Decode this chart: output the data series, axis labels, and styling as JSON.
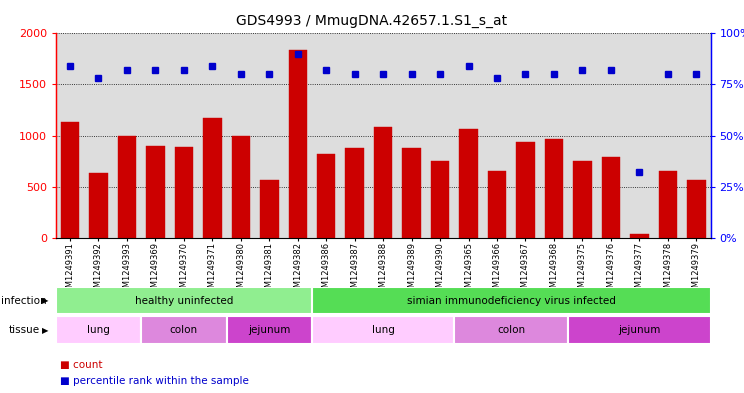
{
  "title": "GDS4993 / MmugDNA.42657.1.S1_s_at",
  "samples": [
    "GSM1249391",
    "GSM1249392",
    "GSM1249393",
    "GSM1249369",
    "GSM1249370",
    "GSM1249371",
    "GSM1249380",
    "GSM1249381",
    "GSM1249382",
    "GSM1249386",
    "GSM1249387",
    "GSM1249388",
    "GSM1249389",
    "GSM1249390",
    "GSM1249365",
    "GSM1249366",
    "GSM1249367",
    "GSM1249368",
    "GSM1249375",
    "GSM1249376",
    "GSM1249377",
    "GSM1249378",
    "GSM1249379"
  ],
  "counts": [
    1130,
    630,
    1000,
    900,
    890,
    1170,
    1000,
    565,
    1840,
    815,
    880,
    1085,
    875,
    755,
    1060,
    655,
    940,
    970,
    755,
    790,
    40,
    650,
    565
  ],
  "percentiles": [
    84,
    78,
    82,
    82,
    82,
    84,
    80,
    80,
    90,
    82,
    80,
    80,
    80,
    80,
    84,
    78,
    80,
    80,
    82,
    82,
    32,
    80,
    80
  ],
  "bar_color": "#cc0000",
  "dot_color": "#0000cc",
  "ylim_left": [
    0,
    2000
  ],
  "ylim_right": [
    0,
    100
  ],
  "yticks_left": [
    0,
    500,
    1000,
    1500,
    2000
  ],
  "yticks_right": [
    0,
    25,
    50,
    75,
    100
  ],
  "infection_groups": [
    {
      "label": "healthy uninfected",
      "start": 0,
      "end": 9,
      "color": "#90ee90"
    },
    {
      "label": "simian immunodeficiency virus infected",
      "start": 9,
      "end": 23,
      "color": "#55dd55"
    }
  ],
  "tissue_groups": [
    {
      "label": "lung",
      "start": 0,
      "end": 3,
      "color": "#ffccff"
    },
    {
      "label": "colon",
      "start": 3,
      "end": 6,
      "color": "#dd88dd"
    },
    {
      "label": "jejunum",
      "start": 6,
      "end": 9,
      "color": "#cc44cc"
    },
    {
      "label": "lung",
      "start": 9,
      "end": 14,
      "color": "#ffccff"
    },
    {
      "label": "colon",
      "start": 14,
      "end": 18,
      "color": "#dd88dd"
    },
    {
      "label": "jejunum",
      "start": 18,
      "end": 23,
      "color": "#cc44cc"
    }
  ],
  "bg_color": "#ffffff",
  "plot_bg_color": "#dddddd",
  "grid_color": "#000000"
}
